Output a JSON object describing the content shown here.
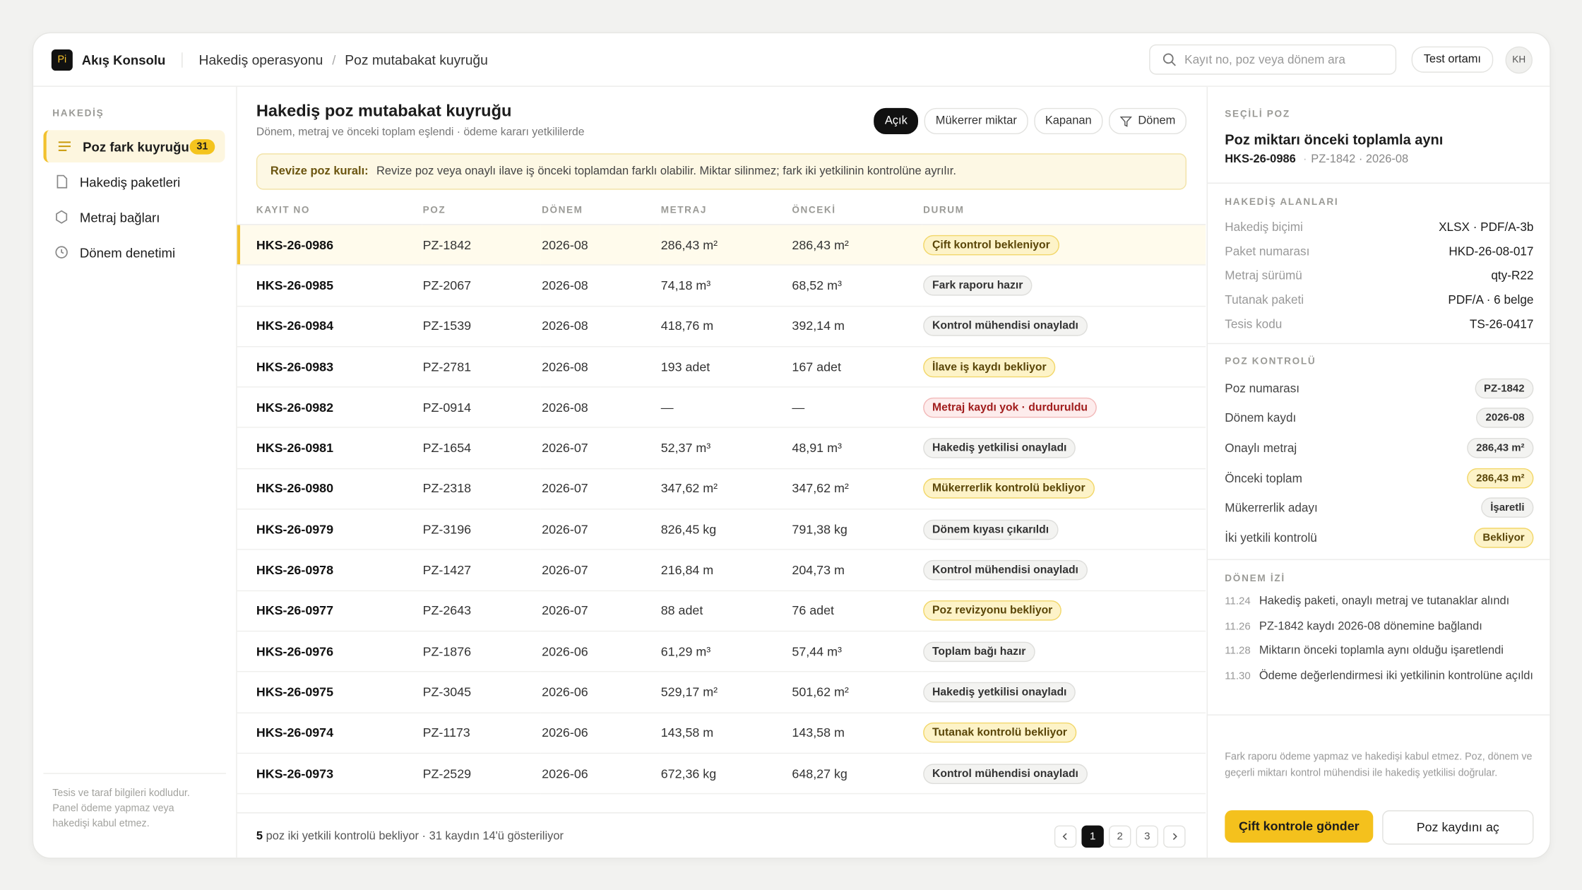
{
  "header": {
    "logo": "Pi",
    "app": "Akış Konsolu",
    "breadcrumb": [
      "Hakediş operasyonu",
      "Poz mutabakat kuyruğu"
    ],
    "search_placeholder": "Kayıt no, poz veya dönem ara",
    "env": "Test ortamı",
    "avatar": "KH"
  },
  "sidebar": {
    "section": "HAKEDİŞ",
    "items": [
      {
        "label": "Poz fark kuyruğu",
        "badge": "31"
      },
      {
        "label": "Hakediş paketleri"
      },
      {
        "label": "Metraj bağları"
      },
      {
        "label": "Dönem denetimi"
      }
    ],
    "footnote": "Tesis ve taraf bilgileri kodludur. Panel ödeme yapmaz veya hakedişi kabul etmez."
  },
  "main": {
    "title": "Hakediş poz mutabakat kuyruğu",
    "subtitle": "Dönem, metraj ve önceki toplam eşlendi · ödeme kararı yetkililerde",
    "filters": [
      "Açık",
      "Mükerrer miktar",
      "Kapanan",
      "Dönem"
    ],
    "notice": {
      "label": "Revize poz kuralı:",
      "text": "Revize poz veya onaylı ilave iş önceki toplamdan farklı olabilir. Miktar silinmez; fark iki yetkilinin kontrolüne ayrılır."
    },
    "table": {
      "columns": [
        "KAYIT NO",
        "POZ",
        "DÖNEM",
        "METRAJ",
        "ÖNCEKİ",
        "DURUM"
      ],
      "rows": [
        {
          "cells": [
            "HKS-26-0986",
            "PZ-1842",
            "2026-08",
            "286,43 m²",
            "286,43 m²",
            "Çift kontrol bekleniyor"
          ],
          "status_color": "yellow"
        },
        {
          "cells": [
            "HKS-26-0985",
            "PZ-2067",
            "2026-08",
            "74,18 m³",
            "68,52 m³",
            "Fark raporu hazır"
          ],
          "status_color": "gray"
        },
        {
          "cells": [
            "HKS-26-0984",
            "PZ-1539",
            "2026-08",
            "418,76 m",
            "392,14 m",
            "Kontrol mühendisi onayladı"
          ],
          "status_color": "gray"
        },
        {
          "cells": [
            "HKS-26-0983",
            "PZ-2781",
            "2026-08",
            "193 adet",
            "167 adet",
            "İlave iş kaydı bekliyor"
          ],
          "status_color": "yellow"
        },
        {
          "cells": [
            "HKS-26-0982",
            "PZ-0914",
            "2026-08",
            "—",
            "—",
            "Metraj kaydı yok · durduruldu"
          ],
          "status_color": "red"
        },
        {
          "cells": [
            "HKS-26-0981",
            "PZ-1654",
            "2026-07",
            "52,37 m³",
            "48,91 m³",
            "Hakediş yetkilisi onayladı"
          ],
          "status_color": "gray"
        },
        {
          "cells": [
            "HKS-26-0980",
            "PZ-2318",
            "2026-07",
            "347,62 m²",
            "347,62 m²",
            "Mükerrerlik kontrolü bekliyor"
          ],
          "status_color": "yellow"
        },
        {
          "cells": [
            "HKS-26-0979",
            "PZ-3196",
            "2026-07",
            "826,45 kg",
            "791,38 kg",
            "Dönem kıyası çıkarıldı"
          ],
          "status_color": "gray"
        },
        {
          "cells": [
            "HKS-26-0978",
            "PZ-1427",
            "2026-07",
            "216,84 m",
            "204,73 m",
            "Kontrol mühendisi onayladı"
          ],
          "status_color": "gray"
        },
        {
          "cells": [
            "HKS-26-0977",
            "PZ-2643",
            "2026-07",
            "88 adet",
            "76 adet",
            "Poz revizyonu bekliyor"
          ],
          "status_color": "yellow"
        },
        {
          "cells": [
            "HKS-26-0976",
            "PZ-1876",
            "2026-06",
            "61,29 m³",
            "57,44 m³",
            "Toplam bağı hazır"
          ],
          "status_color": "gray"
        },
        {
          "cells": [
            "HKS-26-0975",
            "PZ-3045",
            "2026-06",
            "529,17 m²",
            "501,62 m²",
            "Hakediş yetkilisi onayladı"
          ],
          "status_color": "gray"
        },
        {
          "cells": [
            "HKS-26-0974",
            "PZ-1173",
            "2026-06",
            "143,58 m",
            "143,58 m",
            "Tutanak kontrolü bekliyor"
          ],
          "status_color": "yellow"
        },
        {
          "cells": [
            "HKS-26-0973",
            "PZ-2529",
            "2026-06",
            "672,36 kg",
            "648,27 kg",
            "Kontrol mühendisi onayladı"
          ],
          "status_color": "gray"
        }
      ]
    },
    "footer": {
      "count": "5",
      "text": "poz iki yetkili kontrolü bekliyor · 31 kaydın 14'ü gösteriliyor",
      "pages": [
        "1",
        "2",
        "3"
      ]
    }
  },
  "detail": {
    "section": "SEÇİLİ POZ",
    "title": "Poz miktarı önceki toplamla aynı",
    "id": "HKS-26-0986",
    "meta": "PZ-1842 · 2026-08",
    "fields_title": "HAKEDİŞ ALANLARI",
    "fields": [
      [
        "Hakediş biçimi",
        "XLSX · PDF/A-3b"
      ],
      [
        "Paket numarası",
        "HKD-26-08-017"
      ],
      [
        "Metraj sürümü",
        "qty-R22"
      ],
      [
        "Tutanak paketi",
        "PDF/A · 6 belge"
      ],
      [
        "Tesis kodu",
        "TS-26-0417"
      ]
    ],
    "checks_title": "POZ KONTROLÜ",
    "checks": [
      {
        "label": "Poz numarası",
        "value": "PZ-1842",
        "color": "gray"
      },
      {
        "label": "Dönem kaydı",
        "value": "2026-08",
        "color": "gray"
      },
      {
        "label": "Onaylı metraj",
        "value": "286,43 m²",
        "color": "gray"
      },
      {
        "label": "Önceki toplam",
        "value": "286,43 m²",
        "color": "yellow"
      },
      {
        "label": "Mükerrerlik adayı",
        "value": "İşaretli",
        "color": "gray"
      },
      {
        "label": "İki yetkili kontrolü",
        "value": "Bekliyor",
        "color": "yellow"
      }
    ],
    "trail_title": "DÖNEM İZİ",
    "trail": [
      [
        "11.24",
        "Hakediş paketi, onaylı metraj ve tutanaklar alındı"
      ],
      [
        "11.26",
        "PZ-1842 kaydı 2026-08 dönemine bağlandı"
      ],
      [
        "11.28",
        "Miktarın önceki toplamla aynı olduğu işaretlendi"
      ],
      [
        "11.30",
        "Ödeme değerlendirmesi iki yetkilinin kontrolüne açıldı"
      ]
    ],
    "note": "Fark raporu ödeme yapmaz ve hakedişi kabul etmez. Poz, dönem ve geçerli miktarı kontrol mühendisi ile hakediş yetkilisi doğrular.",
    "primary": "Çift kontrole gönder",
    "secondary": "Poz kaydını aç"
  }
}
